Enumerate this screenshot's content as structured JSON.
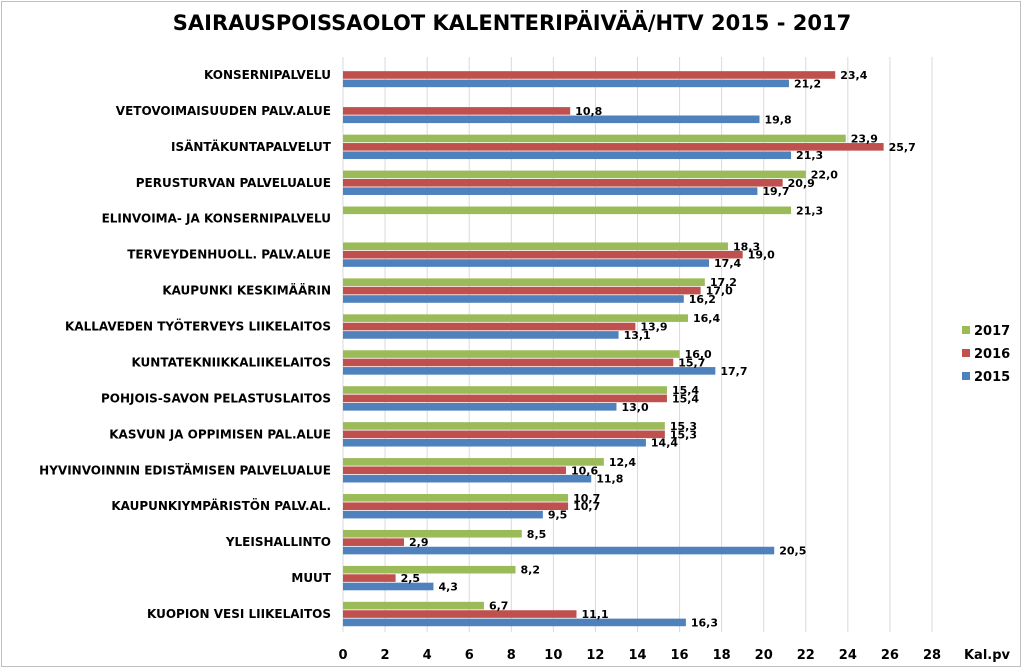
{
  "chart_data": {
    "type": "bar",
    "orientation": "horizontal",
    "title": "SAIRAUSPOISSAOLOT KALENTERIPÄIVÄÄ/HTV  2015 - 2017",
    "xlabel": "Kal.pv",
    "ylabel": "",
    "xlim": [
      0,
      28
    ],
    "xticks": [
      0,
      2,
      4,
      6,
      8,
      10,
      12,
      14,
      16,
      18,
      20,
      22,
      24,
      26,
      28
    ],
    "grid": true,
    "legend": "right",
    "categories": [
      "KONSERNIPALVELU",
      "VETOVOIMAISUUDEN PALV.ALUE",
      "ISÄNTÄKUNTAPALVELUT",
      "PERUSTURVAN PALVELUALUE",
      "ELINVOIMA- JA KONSERNIPALVELU",
      "TERVEYDENHUOLL. PALV.ALUE",
      "KAUPUNKI KESKIMÄÄRIN",
      "KALLAVEDEN TYÖTERVEYS LIIKELAITOS",
      "KUNTATEKNIIKKALIIKELAITOS",
      "POHJOIS-SAVON PELASTUSLAITOS",
      "KASVUN JA OPPIMISEN PAL.ALUE",
      "HYVINVOINNIN EDISTÄMISEN PALVELUALUE",
      "KAUPUNKIYMPÄRISTÖN PALV.AL.",
      "YLEISHALLINTO",
      "MUUT",
      "KUOPION VESI LIIKELAITOS"
    ],
    "series": [
      {
        "name": "2017",
        "color": "#9BBB59",
        "values": [
          null,
          null,
          23.9,
          22.0,
          21.3,
          18.3,
          17.2,
          16.4,
          16.0,
          15.4,
          15.3,
          12.4,
          10.7,
          8.5,
          8.2,
          6.7
        ],
        "labels": [
          null,
          null,
          "23,9",
          "22,0",
          "21,3",
          "18,3",
          "17,2",
          "16,4",
          "16,0",
          "15,4",
          "15,3",
          "12,4",
          "10,7",
          "8,5",
          "8,2",
          "6,7"
        ]
      },
      {
        "name": "2016",
        "color": "#C0504D",
        "values": [
          23.4,
          10.8,
          25.7,
          20.9,
          null,
          19.0,
          17.0,
          13.9,
          15.7,
          15.4,
          15.3,
          10.6,
          10.7,
          2.9,
          2.5,
          11.1
        ],
        "labels": [
          "23,4",
          "10,8",
          "25,7",
          "20,9",
          null,
          "19,0",
          "17,0",
          "13,9",
          "15,7",
          "15,4",
          "15,3",
          "10,6",
          "10,7",
          "2,9",
          "2,5",
          "11,1"
        ]
      },
      {
        "name": "2015",
        "color": "#4F81BD",
        "values": [
          21.2,
          19.8,
          21.3,
          19.7,
          null,
          17.4,
          16.2,
          13.1,
          17.7,
          13.0,
          14.4,
          11.8,
          9.5,
          20.5,
          4.3,
          16.3
        ],
        "labels": [
          "21,2",
          "19,8",
          "21,3",
          "19,7",
          null,
          "17,4",
          "16,2",
          "13,1",
          "17,7",
          "13,0",
          "14,4",
          "11,8",
          "9,5",
          "20,5",
          "4,3",
          "16,3"
        ]
      }
    ]
  }
}
